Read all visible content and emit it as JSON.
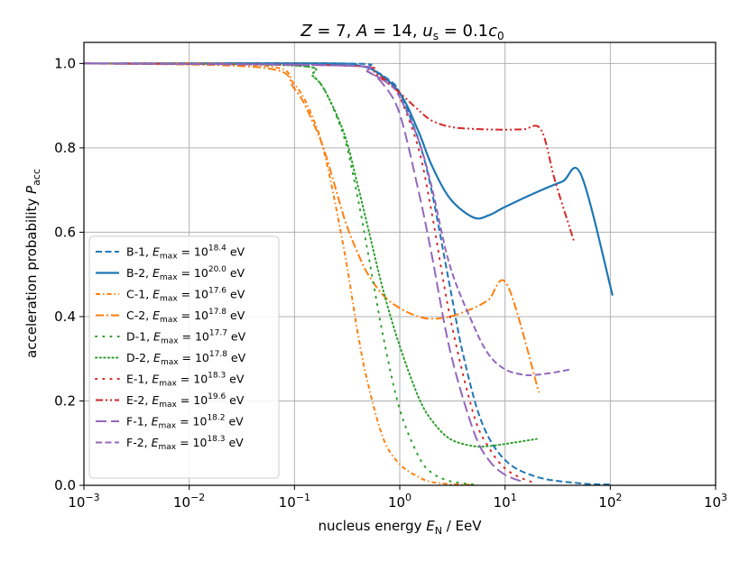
{
  "chart_data": {
    "type": "line",
    "title": "Z = 7, A = 14, u_s = 0.1c_0",
    "xlabel": "nucleus energy E_N / EeV",
    "ylabel": "acceleration probability P_acc",
    "xscale": "log",
    "xlim": [
      0.001,
      1000
    ],
    "ylim": [
      0.0,
      1.05
    ],
    "grid": true,
    "legend_position": "lower-left",
    "x_ticks": [
      {
        "base": "10",
        "exp": "−3",
        "value": 0.001
      },
      {
        "base": "10",
        "exp": "−2",
        "value": 0.01
      },
      {
        "base": "10",
        "exp": "−1",
        "value": 0.1
      },
      {
        "base": "10",
        "exp": "0",
        "value": 1
      },
      {
        "base": "10",
        "exp": "1",
        "value": 10
      },
      {
        "base": "10",
        "exp": "2",
        "value": 100
      },
      {
        "base": "10",
        "exp": "3",
        "value": 1000
      }
    ],
    "y_ticks": [
      "0.0",
      "0.2",
      "0.4",
      "0.6",
      "0.8",
      "1.0"
    ],
    "series": [
      {
        "name": "B-1",
        "emax_exp": "18.4",
        "color": "#1f77b4",
        "style": "dashed",
        "x": [
          0.001,
          0.3,
          0.5,
          0.8,
          1.0,
          1.5,
          2.0,
          3.0,
          4.0,
          6.0,
          10,
          20,
          50,
          100
        ],
        "y": [
          1.0,
          1.0,
          0.99,
          0.96,
          0.93,
          0.82,
          0.7,
          0.47,
          0.31,
          0.15,
          0.06,
          0.02,
          0.005,
          0.002
        ]
      },
      {
        "name": "B-2",
        "emax_exp": "20.0",
        "color": "#1f77b4",
        "style": "solid",
        "x": [
          0.001,
          0.2,
          0.4,
          0.6,
          1.0,
          1.5,
          2.0,
          3.0,
          5.0,
          7.0,
          10,
          20,
          35,
          53,
          105
        ],
        "y": [
          1.0,
          1.0,
          0.995,
          0.98,
          0.93,
          0.84,
          0.76,
          0.68,
          0.635,
          0.64,
          0.66,
          0.695,
          0.72,
          0.735,
          0.45
        ]
      },
      {
        "name": "C-1",
        "emax_exp": "17.6",
        "color": "#ff7f0e",
        "style": "dashdot-fine",
        "x": [
          0.001,
          0.05,
          0.1,
          0.15,
          0.2,
          0.3,
          0.4,
          0.5,
          0.7,
          1.0,
          1.5,
          2.0,
          3.0,
          5.0
        ],
        "y": [
          1.0,
          0.995,
          0.95,
          0.87,
          0.77,
          0.55,
          0.36,
          0.24,
          0.11,
          0.05,
          0.02,
          0.008,
          0.003,
          0.001
        ]
      },
      {
        "name": "C-2",
        "emax_exp": "17.8",
        "color": "#ff7f0e",
        "style": "dashdot",
        "x": [
          0.001,
          0.05,
          0.1,
          0.15,
          0.2,
          0.3,
          0.4,
          0.5,
          0.7,
          1.0,
          1.5,
          2.0,
          3.0,
          5.0,
          7.0,
          10.5,
          21
        ],
        "y": [
          1.0,
          0.99,
          0.94,
          0.86,
          0.78,
          0.63,
          0.55,
          0.5,
          0.45,
          0.42,
          0.4,
          0.395,
          0.4,
          0.42,
          0.44,
          0.475,
          0.22
        ]
      },
      {
        "name": "D-1",
        "emax_exp": "17.7",
        "color": "#2ca02c",
        "style": "dotted-sparse",
        "x": [
          0.001,
          0.1,
          0.15,
          0.2,
          0.3,
          0.4,
          0.5,
          0.7,
          1.0,
          1.5,
          2.0,
          3.0,
          5.0
        ],
        "y": [
          1.0,
          0.995,
          0.97,
          0.93,
          0.82,
          0.68,
          0.55,
          0.35,
          0.18,
          0.07,
          0.03,
          0.01,
          0.002
        ]
      },
      {
        "name": "D-2",
        "emax_exp": "17.8",
        "color": "#2ca02c",
        "style": "dotted",
        "x": [
          0.001,
          0.1,
          0.15,
          0.2,
          0.3,
          0.4,
          0.5,
          0.7,
          1.0,
          1.5,
          2.0,
          3.0,
          5.0,
          7.0,
          10,
          20
        ],
        "y": [
          1.0,
          0.995,
          0.97,
          0.93,
          0.83,
          0.71,
          0.61,
          0.46,
          0.33,
          0.21,
          0.155,
          0.11,
          0.093,
          0.093,
          0.098,
          0.11
        ]
      },
      {
        "name": "E-1",
        "emax_exp": "18.3",
        "color": "#d62728",
        "style": "dotted-sparse",
        "x": [
          0.001,
          0.3,
          0.5,
          0.8,
          1.0,
          1.5,
          2.0,
          3.0,
          5.0,
          7.0,
          10,
          15,
          20
        ],
        "y": [
          1.0,
          0.995,
          0.98,
          0.95,
          0.92,
          0.8,
          0.65,
          0.4,
          0.17,
          0.09,
          0.04,
          0.015,
          0.005
        ]
      },
      {
        "name": "E-2",
        "emax_exp": "19.6",
        "color": "#d62728",
        "style": "dashdotdot",
        "x": [
          0.001,
          0.3,
          0.6,
          1.0,
          1.5,
          2.0,
          3.0,
          5.0,
          10,
          15,
          22,
          30,
          45
        ],
        "y": [
          1.0,
          0.995,
          0.975,
          0.93,
          0.89,
          0.865,
          0.85,
          0.845,
          0.843,
          0.844,
          0.843,
          0.72,
          0.58
        ]
      },
      {
        "name": "F-1",
        "emax_exp": "18.2",
        "color": "#9467bd",
        "style": "longdash",
        "x": [
          0.001,
          0.3,
          0.5,
          0.7,
          1.0,
          1.5,
          2.0,
          3.0,
          5.0,
          7.0,
          10,
          15
        ],
        "y": [
          1.0,
          0.995,
          0.98,
          0.95,
          0.88,
          0.7,
          0.55,
          0.32,
          0.13,
          0.06,
          0.025,
          0.008
        ]
      },
      {
        "name": "F-2",
        "emax_exp": "18.3",
        "color": "#9467bd",
        "style": "dashed",
        "x": [
          0.001,
          0.3,
          0.5,
          0.8,
          1.0,
          1.5,
          2.0,
          3.0,
          5.0,
          7.0,
          10,
          15,
          20,
          30,
          42
        ],
        "y": [
          1.0,
          0.995,
          0.98,
          0.95,
          0.92,
          0.82,
          0.71,
          0.52,
          0.38,
          0.31,
          0.275,
          0.262,
          0.262,
          0.268,
          0.275
        ]
      }
    ]
  }
}
